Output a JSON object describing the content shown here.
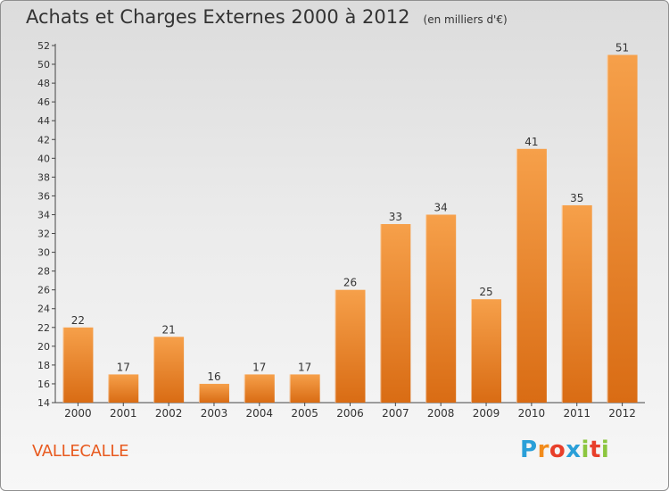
{
  "title": "Achats et Charges Externes 2000 à 2012",
  "unit": "(en milliers d'€)",
  "commune": "VALLECALLE",
  "logo": {
    "letters": [
      "P",
      "r",
      "o",
      "x",
      "i",
      "t",
      "i"
    ],
    "colors": [
      "#2a9fd8",
      "#f28c1c",
      "#e83f2a",
      "#2a9fd8",
      "#8cc63f",
      "#e83f2a",
      "#8cc63f"
    ]
  },
  "colors": {
    "bar_top": "#f6a04a",
    "bar_bottom": "#d96c14",
    "text": "#333333",
    "commune": "#e85a1f"
  },
  "chart_data": {
    "type": "bar",
    "title": "Achats et Charges Externes 2000 à 2012",
    "subtitle": "(en milliers d'€)",
    "categories": [
      "2000",
      "2001",
      "2002",
      "2003",
      "2004",
      "2005",
      "2006",
      "2007",
      "2008",
      "2009",
      "2010",
      "2011",
      "2012"
    ],
    "values": [
      22,
      17,
      21,
      16,
      17,
      17,
      26,
      33,
      34,
      25,
      41,
      35,
      51
    ],
    "ylim": [
      14,
      52
    ],
    "yticks": [
      14,
      16,
      18,
      20,
      22,
      24,
      26,
      28,
      30,
      32,
      34,
      36,
      38,
      40,
      42,
      44,
      46,
      48,
      50,
      52
    ],
    "grid": false,
    "legend": "none"
  }
}
